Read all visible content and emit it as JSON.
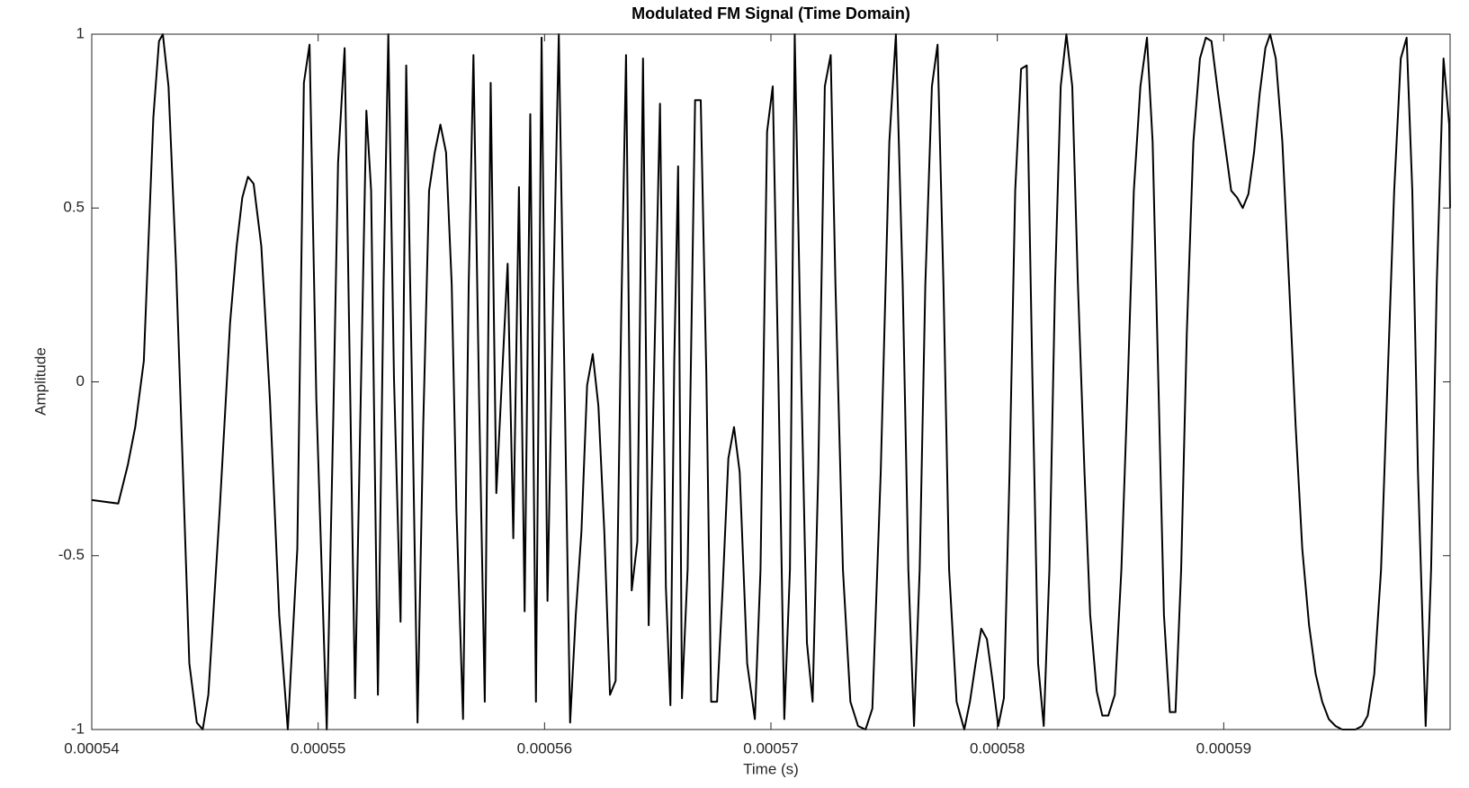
{
  "chart_data": {
    "type": "line",
    "title": "Modulated FM Signal (Time Domain)",
    "x_label": "Time (s)",
    "y_label": "Amplitude",
    "color": "#000000",
    "grid": false,
    "xlim": [
      0.00054,
      0.0006
    ],
    "ylim": [
      -1,
      1
    ],
    "xticks": [
      0.00054,
      0.00055,
      0.00056,
      0.00057,
      0.00058,
      0.00059
    ],
    "yticks": [
      -1,
      -0.5,
      0,
      0.5,
      1
    ],
    "x": [
      0.00054,
      0.00054117,
      0.00054159,
      0.00054192,
      0.0005423,
      0.00054272,
      0.00054297,
      0.00054314,
      0.00054339,
      0.00054372,
      0.00054431,
      0.00054464,
      0.0005449,
      0.00054515,
      0.00054565,
      0.00054611,
      0.0005464,
      0.00054665,
      0.0005469,
      0.00054715,
      0.00054749,
      0.00054787,
      0.00054828,
      0.00054866,
      0.00054908,
      0.00054937,
      0.00054962,
      0.00054992,
      0.00055038,
      0.00055067,
      0.00055088,
      0.00055117,
      0.00055142,
      0.00055163,
      0.00055188,
      0.00055213,
      0.00055234,
      0.00055264,
      0.00055289,
      0.0005531,
      0.00055335,
      0.00055364,
      0.00055389,
      0.00055414,
      0.00055439,
      0.00055464,
      0.0005549,
      0.00055515,
      0.0005554,
      0.00055565,
      0.0005559,
      0.00055611,
      0.0005564,
      0.00055665,
      0.00055686,
      0.00055711,
      0.00055736,
      0.00055762,
      0.00055787,
      0.00055812,
      0.00055837,
      0.00055862,
      0.00055887,
      0.00055912,
      0.00055937,
      0.00055962,
      0.00055987,
      0.00056013,
      0.00056038,
      0.00056063,
      0.00056088,
      0.00056113,
      0.00056138,
      0.00056163,
      0.00056188,
      0.00056213,
      0.00056238,
      0.00056264,
      0.00056289,
      0.00056314,
      0.00056339,
      0.0005636,
      0.00056385,
      0.0005641,
      0.00056435,
      0.0005646,
      0.00056485,
      0.0005651,
      0.00056536,
      0.00056556,
      0.00056573,
      0.0005659,
      0.00056607,
      0.00056632,
      0.00056665,
      0.0005669,
      0.00056715,
      0.00056736,
      0.00056762,
      0.00056787,
      0.00056812,
      0.00056837,
      0.00056862,
      0.00056895,
      0.00056929,
      0.00056954,
      0.00056983,
      0.00057008,
      0.00057033,
      0.00057059,
      0.00057084,
      0.00057105,
      0.00057134,
      0.00057159,
      0.00057184,
      0.00057209,
      0.00057238,
      0.00057264,
      0.00057285,
      0.00057318,
      0.00057351,
      0.00057385,
      0.00057418,
      0.00057448,
      0.00057485,
      0.00057523,
      0.00057552,
      0.00057582,
      0.00057607,
      0.00057632,
      0.00057657,
      0.00057682,
      0.00057711,
      0.00057736,
      0.00057762,
      0.00057787,
      0.0005782,
      0.00057854,
      0.00057879,
      0.00057904,
      0.00057929,
      0.00057954,
      0.00057979,
      0.00058004,
      0.00058029,
      0.00058054,
      0.00058079,
      0.00058105,
      0.0005813,
      0.00058155,
      0.0005818,
      0.00058205,
      0.0005823,
      0.00058255,
      0.0005828,
      0.00058305,
      0.00058331,
      0.00058356,
      0.00058385,
      0.0005841,
      0.00058439,
      0.00058464,
      0.0005849,
      0.00058519,
      0.00058548,
      0.00058577,
      0.00058603,
      0.00058632,
      0.00058661,
      0.00058686,
      0.00058711,
      0.00058736,
      0.00058762,
      0.00058787,
      0.00058812,
      0.00058837,
      0.00058866,
      0.00058895,
      0.00058921,
      0.00058946,
      0.00058975,
      0.00059004,
      0.00059033,
      0.00059059,
      0.00059084,
      0.00059109,
      0.00059134,
      0.00059159,
      0.00059184,
      0.00059205,
      0.0005923,
      0.00059259,
      0.00059289,
      0.00059318,
      0.00059347,
      0.00059377,
      0.00059406,
      0.00059435,
      0.00059464,
      0.00059494,
      0.00059523,
      0.00059552,
      0.00059582,
      0.00059611,
      0.00059636,
      0.00059665,
      0.00059695,
      0.00059724,
      0.00059753,
      0.00059782,
      0.00059808,
      0.00059833,
      0.00059858,
      0.00059892,
      0.00059916,
      0.00059941,
      0.00059971,
      0.00059996,
      0.0006
    ],
    "values": [
      -0.34,
      -0.35,
      -0.24,
      -0.13,
      0.06,
      0.76,
      0.98,
      1,
      0.85,
      0.34,
      -0.81,
      -0.98,
      -1,
      -0.9,
      -0.37,
      0.17,
      0.39,
      0.53,
      0.59,
      0.57,
      0.39,
      -0.05,
      -0.67,
      -1,
      -0.48,
      0.86,
      0.97,
      -0.05,
      -1,
      -0.1,
      0.63,
      0.96,
      -0.05,
      -0.91,
      -0.05,
      0.78,
      0.55,
      -0.9,
      0.28,
      1,
      0.01,
      -0.69,
      0.91,
      0.01,
      -0.98,
      -0.13,
      0.55,
      0.66,
      0.74,
      0.66,
      0.28,
      -0.37,
      -0.97,
      0.28,
      0.94,
      -0.05,
      -0.92,
      0.86,
      -0.32,
      0.01,
      0.34,
      -0.45,
      0.56,
      -0.66,
      0.77,
      -0.92,
      0.99,
      -0.63,
      0.23,
      1,
      0.01,
      -0.98,
      -0.67,
      -0.43,
      -0.01,
      0.08,
      -0.07,
      -0.43,
      -0.9,
      -0.86,
      0.2,
      0.94,
      -0.6,
      -0.46,
      0.93,
      -0.7,
      0.06,
      0.8,
      -0.59,
      -0.93,
      0.06,
      0.62,
      -0.91,
      -0.54,
      0.81,
      0.81,
      0.01,
      -0.92,
      -0.92,
      -0.59,
      -0.22,
      -0.13,
      -0.26,
      -0.81,
      -0.97,
      -0.54,
      0.72,
      0.85,
      0.01,
      -0.97,
      -0.54,
      1,
      0.01,
      -0.75,
      -0.92,
      -0.26,
      0.85,
      0.94,
      0.28,
      -0.54,
      -0.92,
      -0.99,
      -1,
      -0.94,
      -0.26,
      0.69,
      1,
      0.28,
      -0.54,
      -0.99,
      -0.54,
      0.28,
      0.85,
      0.97,
      0.28,
      -0.54,
      -0.92,
      -1,
      -0.92,
      -0.81,
      -0.71,
      -0.74,
      -0.86,
      -0.99,
      -0.91,
      -0.26,
      0.55,
      0.9,
      0.91,
      0.01,
      -0.81,
      -0.99,
      -0.54,
      0.28,
      0.85,
      1,
      0.85,
      0.28,
      -0.26,
      -0.67,
      -0.89,
      -0.96,
      -0.96,
      -0.9,
      -0.54,
      0.01,
      0.55,
      0.85,
      0.99,
      0.69,
      0.01,
      -0.67,
      -0.95,
      -0.95,
      -0.54,
      0.14,
      0.69,
      0.93,
      0.99,
      0.98,
      0.83,
      0.69,
      0.55,
      0.53,
      0.5,
      0.54,
      0.66,
      0.83,
      0.96,
      1,
      0.93,
      0.69,
      0.28,
      -0.13,
      -0.48,
      -0.7,
      -0.84,
      -0.92,
      -0.97,
      -0.99,
      -1,
      -1,
      -1,
      -0.99,
      -0.96,
      -0.84,
      -0.54,
      0.01,
      0.55,
      0.93,
      0.99,
      0.55,
      -0.26,
      -0.99,
      -0.54,
      0.28,
      0.93,
      0.74,
      0.5
    ]
  }
}
